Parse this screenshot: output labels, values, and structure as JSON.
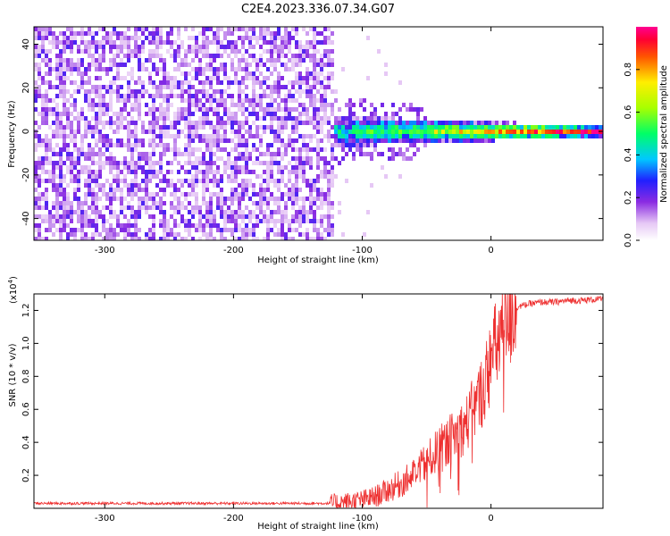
{
  "title": "C2E4.2023.336.07.34.G07",
  "chart_data": [
    {
      "type": "heatmap",
      "name": "spectrogram",
      "xlabel": "Height of straight line (km)",
      "ylabel": "Frequency (Hz)",
      "xlim": [
        -355,
        87
      ],
      "ylim": [
        -50,
        48
      ],
      "xticks": [
        -300,
        -200,
        -100,
        0
      ],
      "yticks": [
        -40,
        -20,
        0,
        20,
        40
      ],
      "noise_region": [
        -355,
        -122
      ],
      "signal_start": -122,
      "signal_center_hz": 0,
      "colorbar": {
        "label": "Normalized spectral amplitude",
        "range": [
          0,
          1
        ],
        "ticks": [
          0.0,
          0.2,
          0.4,
          0.6,
          0.8
        ],
        "stops": [
          {
            "v": 0.0,
            "color": "#ffffff"
          },
          {
            "v": 0.08,
            "color": "#e6c8f5"
          },
          {
            "v": 0.18,
            "color": "#8a2be2"
          },
          {
            "v": 0.28,
            "color": "#2020ff"
          },
          {
            "v": 0.38,
            "color": "#00c8ff"
          },
          {
            "v": 0.5,
            "color": "#00ff66"
          },
          {
            "v": 0.62,
            "color": "#a8ff00"
          },
          {
            "v": 0.74,
            "color": "#ffee00"
          },
          {
            "v": 0.86,
            "color": "#ff5500"
          },
          {
            "v": 0.94,
            "color": "#ff0033"
          },
          {
            "v": 1.0,
            "color": "#ff0090"
          }
        ]
      }
    },
    {
      "type": "line",
      "name": "snr",
      "xlabel": "Height of straight line (km)",
      "ylabel": "SNR (10 * v/v)",
      "scale_label": "(x10",
      "scale_exp": "4",
      "scale_close": ")",
      "xlim": [
        -355,
        87
      ],
      "ylim": [
        0,
        1.3
      ],
      "xticks": [
        -300,
        -200,
        -100,
        0
      ],
      "yticks": [
        0.2,
        0.4,
        0.6,
        0.8,
        1.0,
        1.2
      ],
      "ytick_labels": [
        "0.2",
        "0.4",
        "0.6",
        "0.8",
        "1.0",
        "1.2"
      ],
      "color": "#ee3030",
      "x": [
        -355,
        -300,
        -200,
        -140,
        -125,
        -110,
        -100,
        -90,
        -80,
        -70,
        -60,
        -50,
        -40,
        -30,
        -20,
        -15,
        -10,
        -5,
        0,
        5,
        10,
        15,
        20,
        30,
        40,
        50,
        60,
        70,
        87
      ],
      "y": [
        0.03,
        0.03,
        0.03,
        0.03,
        0.03,
        0.04,
        0.05,
        0.07,
        0.11,
        0.15,
        0.2,
        0.28,
        0.36,
        0.43,
        0.5,
        0.58,
        0.65,
        0.75,
        0.9,
        1.0,
        1.1,
        1.18,
        1.22,
        1.24,
        1.25,
        1.25,
        1.26,
        1.26,
        1.27
      ]
    }
  ]
}
